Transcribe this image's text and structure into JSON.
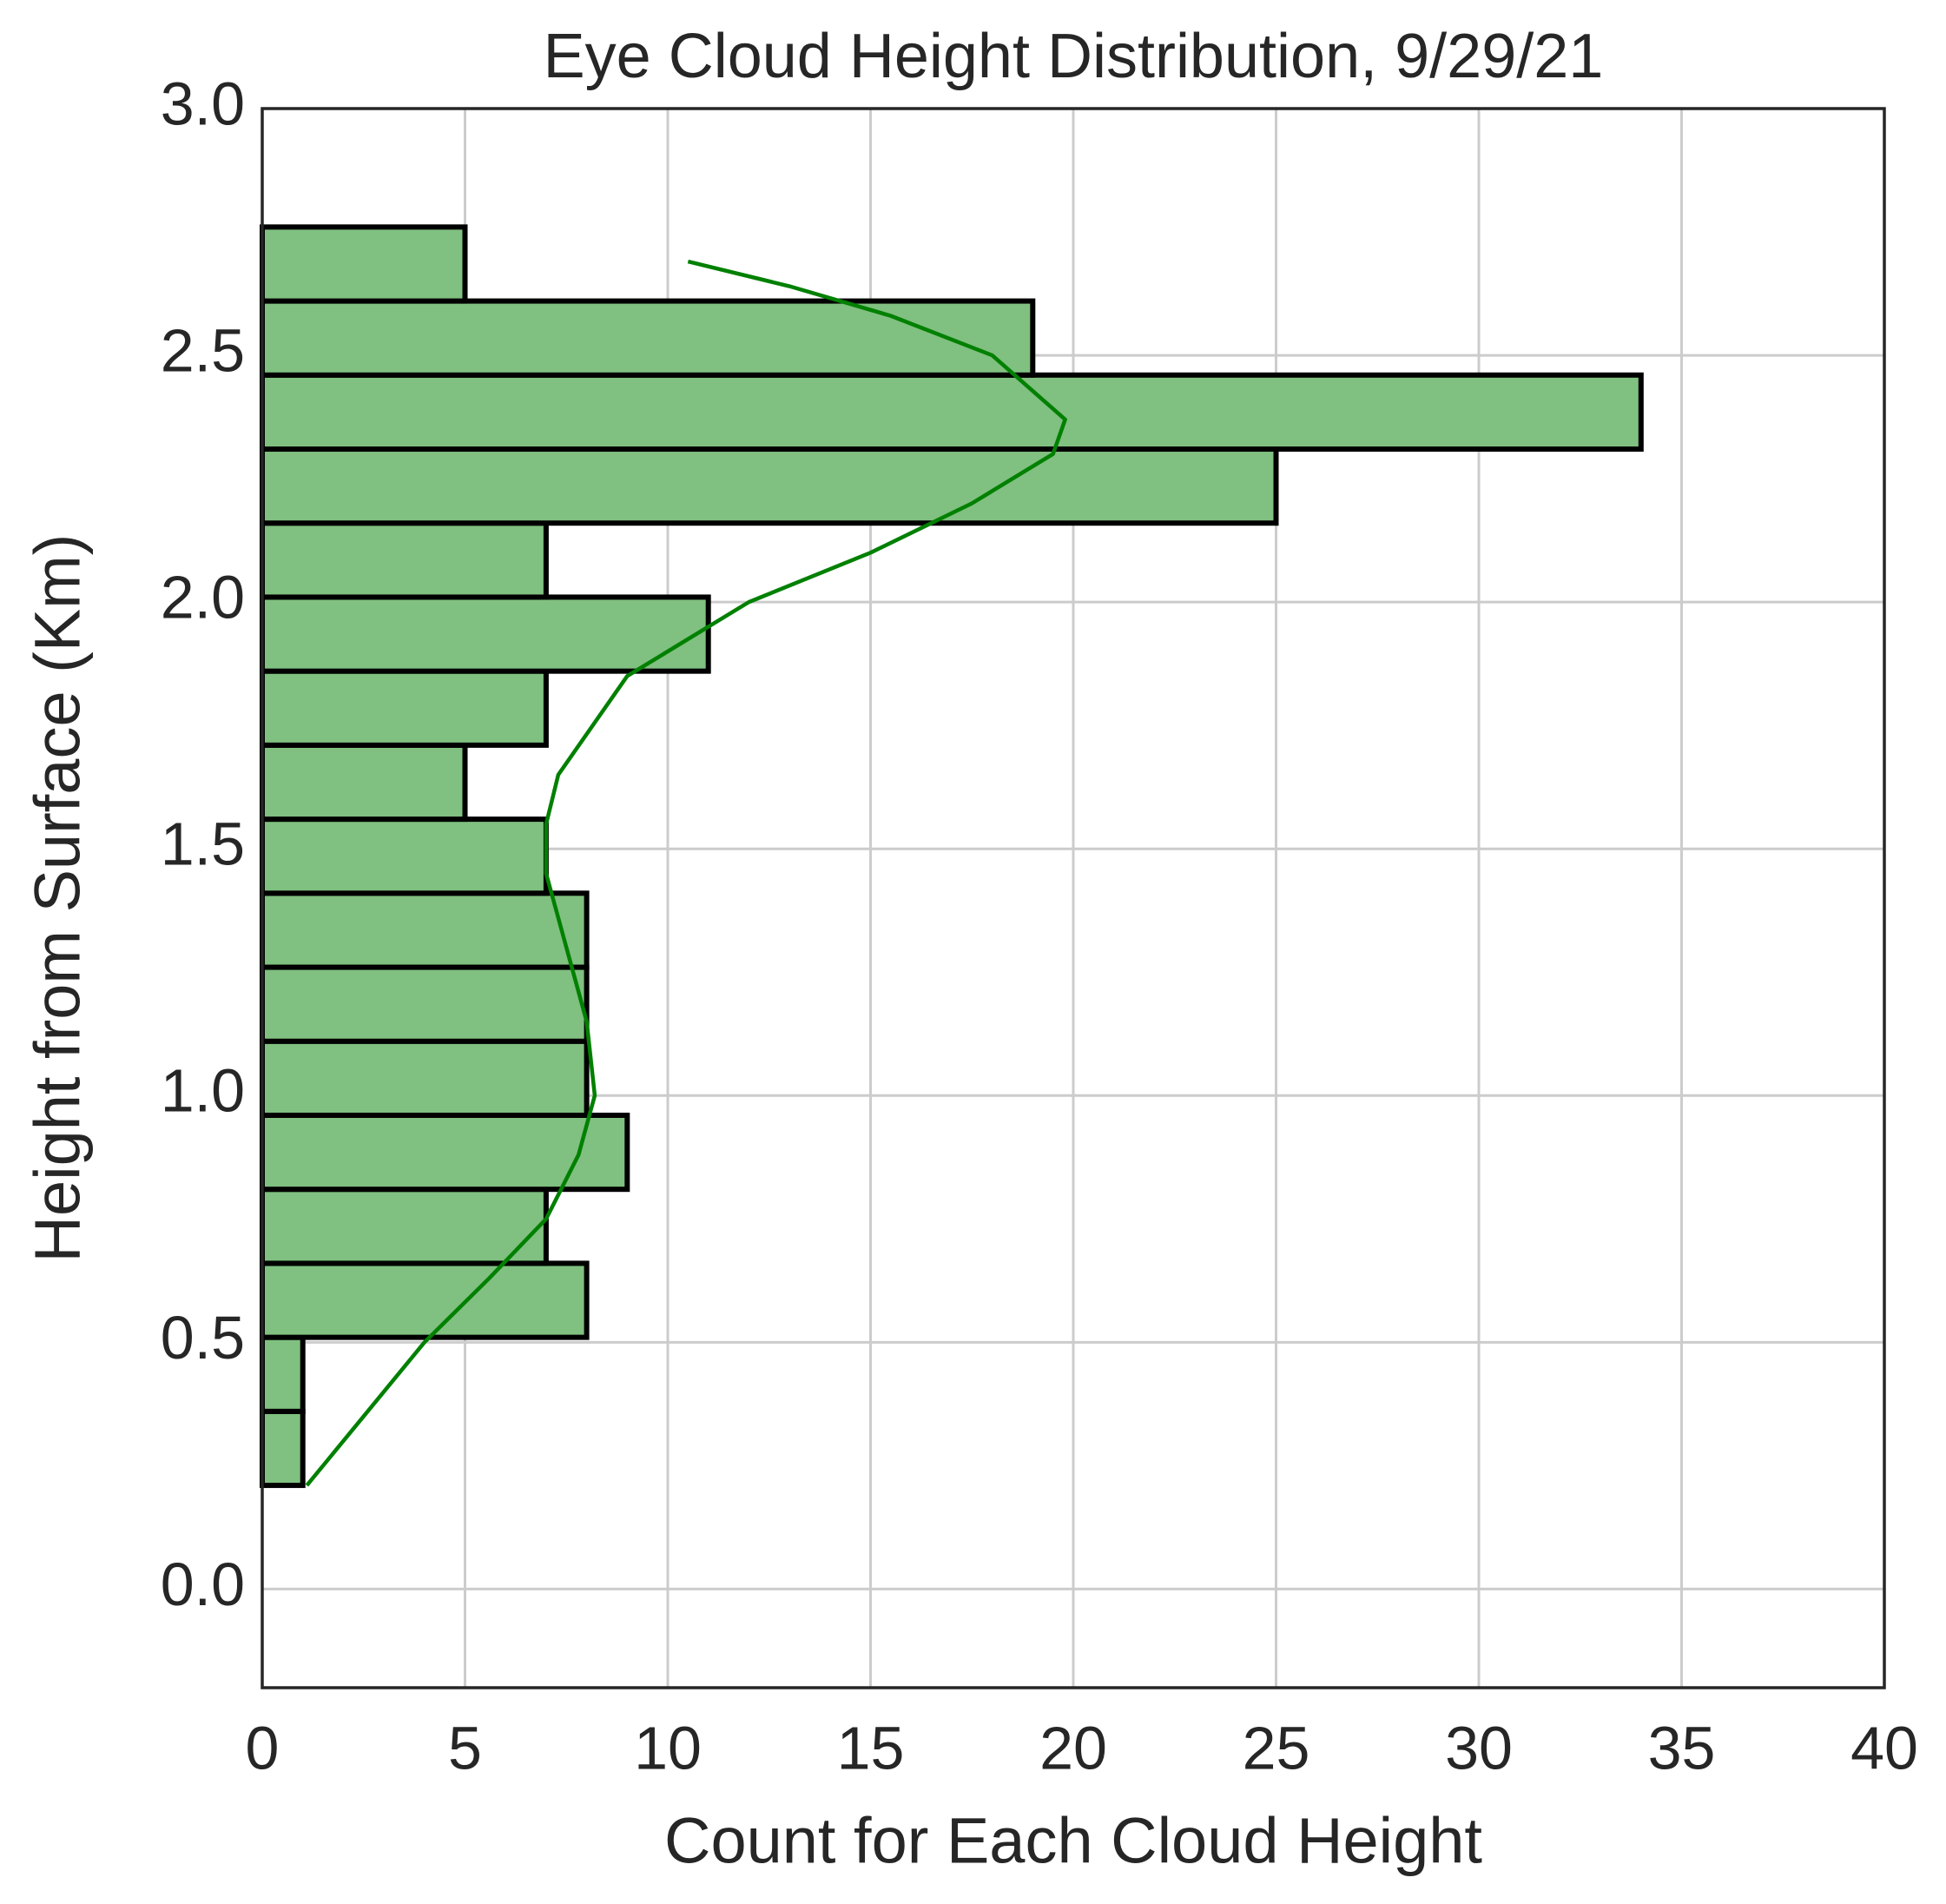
{
  "chart_data": {
    "type": "histogram",
    "orientation": "horizontal",
    "title": "Eye Cloud Height Distribution, 9/29/21",
    "xlabel": "Count for Each Cloud Height",
    "ylabel": "Height from Surface (Km)",
    "bins": [
      0.21,
      0.36,
      0.51,
      0.66,
      0.81,
      0.96,
      1.11,
      1.26,
      1.41,
      1.56,
      1.71,
      1.86,
      2.01,
      2.16,
      2.31,
      2.46,
      2.61,
      2.76
    ],
    "counts": [
      1,
      1,
      8,
      7,
      9,
      8,
      8,
      8,
      7,
      5,
      7,
      11,
      7,
      25,
      34,
      19,
      5
    ],
    "color": "#80c080",
    "edgecolor": "#000000",
    "kde": {
      "color": "#008000",
      "counts": [
        1.1,
        2.5,
        4,
        5.6,
        7,
        7.8,
        8.2,
        8,
        7.5,
        7,
        7,
        7.3,
        9,
        12,
        15,
        17.5,
        19.5,
        19.8,
        18,
        15.5,
        13,
        10.5
      ],
      "heights": [
        0.21,
        0.35,
        0.5,
        0.63,
        0.75,
        0.88,
        1.0,
        1.15,
        1.3,
        1.45,
        1.55,
        1.65,
        1.85,
        2.0,
        2.1,
        2.2,
        2.3,
        2.37,
        2.5,
        2.58,
        2.64,
        2.69
      ]
    },
    "xlim": [
      0,
      40
    ],
    "xticks": [
      0,
      5,
      10,
      15,
      20,
      25,
      30,
      35,
      40
    ],
    "ylim": [
      -0.2,
      3.0
    ],
    "yticks": [
      {
        "value": 0,
        "label": "0.0"
      },
      0.5,
      {
        "value": 1,
        "label": "1.0"
      },
      1.5,
      {
        "value": 2,
        "label": "2.0"
      },
      2.5,
      {
        "value": 3,
        "label": "3.0"
      }
    ],
    "grid": true
  }
}
